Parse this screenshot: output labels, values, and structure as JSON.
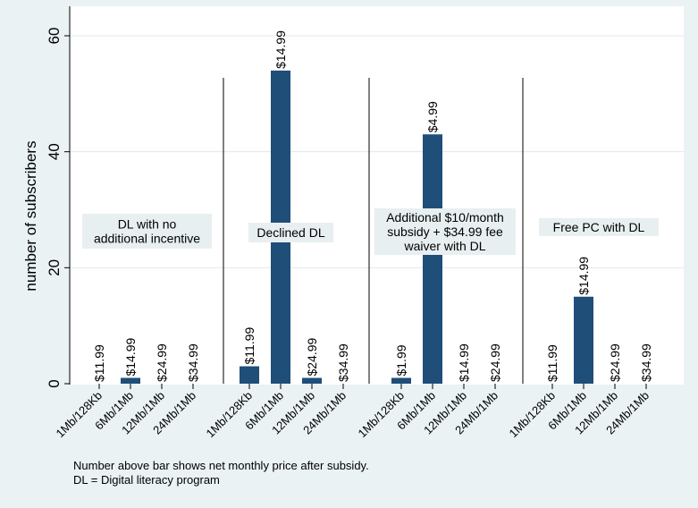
{
  "chart_data": {
    "type": "bar",
    "ylabel": "number of subscribers",
    "ylim": [
      0,
      60
    ],
    "yticks": [
      0,
      20,
      40,
      60
    ],
    "grid": true,
    "bar_color": "#1f4e79",
    "panel_label_bg": "#e8eff0",
    "background": "#eaf2f3",
    "plot_background": "#ffffff",
    "groups": [
      {
        "label": "DL with no additional incentive",
        "label_lines": [
          "DL with no",
          "additional incentive"
        ],
        "categories": [
          "1Mb/128Kb",
          "6Mb/1Mb",
          "12Mb/1Mb",
          "24Mb/1Mb"
        ],
        "values": [
          0,
          1,
          0,
          0
        ],
        "price_labels": [
          "$11.99",
          "$14.99",
          "$24.99",
          "$34.99"
        ]
      },
      {
        "label": "Declined DL",
        "label_lines": [
          "Declined DL"
        ],
        "categories": [
          "1Mb/128Kb",
          "6Mb/1Mb",
          "12Mb/1Mb",
          "24Mb/1Mb"
        ],
        "values": [
          3,
          54,
          1,
          0
        ],
        "price_labels": [
          "$11.99",
          "$14.99",
          "$24.99",
          "$34.99"
        ]
      },
      {
        "label": "Additional $10/month subsidy + $34.99 fee waiver with DL",
        "label_lines": [
          "Additional $10/month",
          "subsidy + $34.99 fee",
          "waiver with DL"
        ],
        "categories": [
          "1Mb/128Kb",
          "6Mb/1Mb",
          "12Mb/1Mb",
          "24Mb/1Mb"
        ],
        "values": [
          1,
          43,
          0,
          0
        ],
        "price_labels": [
          "$1.99",
          "$4.99",
          "$14.99",
          "$24.99"
        ]
      },
      {
        "label": "Free PC with DL",
        "label_lines": [
          "Free PC with DL"
        ],
        "categories": [
          "1Mb/128Kb",
          "6Mb/1Mb",
          "12Mb/1Mb",
          "24Mb/1Mb"
        ],
        "values": [
          0,
          15,
          0,
          0
        ],
        "price_labels": [
          "$11.99",
          "$14.99",
          "$24.99",
          "$34.99"
        ]
      }
    ]
  },
  "notes": {
    "line1": "Number above bar shows net monthly price after subsidy.",
    "line2": "DL = Digital literacy program"
  }
}
